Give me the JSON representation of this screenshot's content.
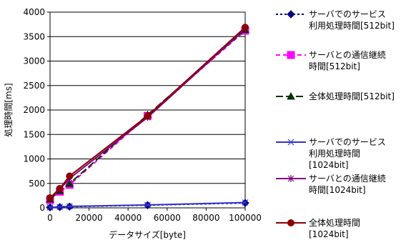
{
  "chart_data": {
    "type": "line",
    "xlabel": "データサイズ[byte]",
    "ylabel": "処理時間[ms]",
    "xlim": [
      0,
      100000
    ],
    "ylim": [
      0,
      4000
    ],
    "x_ticks": [
      "0",
      "20000",
      "40000",
      "60000",
      "80000",
      "100000"
    ],
    "y_ticks": [
      "0",
      "500",
      "1000",
      "1500",
      "2000",
      "2500",
      "3000",
      "3500",
      "4000"
    ],
    "grid": "y-major",
    "legend_position": "right",
    "x": [
      0,
      5000,
      10000,
      50000,
      100000
    ],
    "series": [
      {
        "name_lines": [
          "サーバでのサービス",
          "利用処理時間[512bit]"
        ],
        "color": "#000080",
        "dash": "3,3",
        "marker": "diamond",
        "values": [
          10,
          15,
          25,
          55,
          100
        ]
      },
      {
        "name_lines": [
          "サーバとの通信継続",
          "時間[512bit]"
        ],
        "color": "#ff00ff",
        "dash": "6,4",
        "marker": "square",
        "values": [
          160,
          330,
          470,
          1880,
          3620
        ]
      },
      {
        "name_lines": [
          "全体処理時間[512bit]"
        ],
        "color": "#003300",
        "dash": "10,4",
        "marker": "triangle",
        "values": [
          175,
          350,
          495,
          1900,
          3640
        ]
      },
      {
        "name_lines": [
          "サーバでのサービス",
          "利用処理時間",
          "[1024bit]"
        ],
        "color": "#3333cc",
        "dash": "",
        "marker": "x",
        "values": [
          10,
          20,
          30,
          60,
          110
        ]
      },
      {
        "name_lines": [
          "サーバとの通信継続",
          "時間[1024bit]"
        ],
        "color": "#800080",
        "dash": "",
        "marker": "star",
        "values": [
          200,
          380,
          600,
          1850,
          3660
        ]
      },
      {
        "name_lines": [
          "全体処理時間",
          "[1024bit]"
        ],
        "color": "#8b0000",
        "dash": "",
        "marker": "circle",
        "values": [
          205,
          395,
          650,
          1880,
          3690
        ]
      }
    ]
  }
}
